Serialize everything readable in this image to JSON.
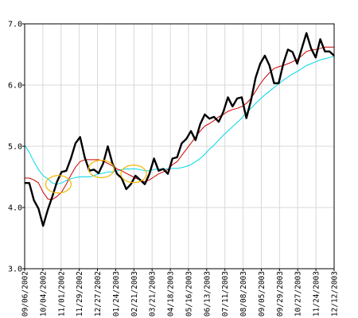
{
  "chart_data": {
    "type": "line",
    "title": "",
    "xlabel": "",
    "ylabel": "",
    "ylim": [
      3.0,
      7.0
    ],
    "y_ticks": [
      "3.0",
      "4.0",
      "5.0",
      "6.0",
      "7.0"
    ],
    "x_tick_labels": [
      "09/06/2002",
      "10/04/2002",
      "11/01/2002",
      "11/29/2002",
      "12/27/2002",
      "01/24/2003",
      "02/21/2003",
      "03/21/2003",
      "04/18/2003",
      "05/16/2003",
      "06/13/2003",
      "07/11/2003",
      "08/08/2003",
      "09/05/2003",
      "09/29/2003",
      "10/27/2003",
      "11/24/2003",
      "12/12/2003"
    ],
    "grid": true,
    "colors": {
      "price": "#000000",
      "ma_short": "#cc0000",
      "ma_long": "#00d8e8",
      "crossover_marker": "#f5b800"
    },
    "series": [
      {
        "key": "price",
        "values": [
          4.4,
          4.4,
          4.12,
          3.98,
          3.7,
          3.96,
          4.18,
          4.42,
          4.58,
          4.6,
          4.8,
          5.05,
          5.15,
          4.82,
          4.6,
          4.62,
          4.56,
          4.72,
          5.0,
          4.72,
          4.55,
          4.48,
          4.3,
          4.38,
          4.52,
          4.45,
          4.38,
          4.55,
          4.8,
          4.6,
          4.63,
          4.55,
          4.8,
          4.82,
          5.05,
          5.12,
          5.25,
          5.1,
          5.36,
          5.52,
          5.45,
          5.48,
          5.4,
          5.56,
          5.8,
          5.65,
          5.78,
          5.8,
          5.46,
          5.75,
          6.12,
          6.35,
          6.48,
          6.32,
          6.03,
          6.03,
          6.35,
          6.58,
          6.54,
          6.35,
          6.6,
          6.85,
          6.6,
          6.45,
          6.75,
          6.55,
          6.55,
          6.48
        ]
      },
      {
        "key": "ma_short",
        "values": [
          4.48,
          4.48,
          4.45,
          4.4,
          4.25,
          4.14,
          4.13,
          4.18,
          4.25,
          4.38,
          4.53,
          4.66,
          4.75,
          4.78,
          4.78,
          4.78,
          4.78,
          4.76,
          4.72,
          4.68,
          4.63,
          4.6,
          4.56,
          4.52,
          4.48,
          4.45,
          4.42,
          4.45,
          4.5,
          4.55,
          4.58,
          4.62,
          4.7,
          4.75,
          4.85,
          4.95,
          5.05,
          5.15,
          5.25,
          5.33,
          5.37,
          5.42,
          5.48,
          5.52,
          5.57,
          5.6,
          5.62,
          5.65,
          5.7,
          5.78,
          5.9,
          6.02,
          6.12,
          6.2,
          6.27,
          6.3,
          6.32,
          6.35,
          6.38,
          6.42,
          6.48,
          6.55,
          6.57,
          6.58,
          6.6,
          6.62,
          6.62,
          6.62
        ]
      },
      {
        "key": "ma_long",
        "values": [
          5.02,
          4.9,
          4.75,
          4.62,
          4.52,
          4.47,
          4.4,
          4.38,
          4.4,
          4.44,
          4.47,
          4.49,
          4.5,
          4.5,
          4.5,
          4.52,
          4.55,
          4.56,
          4.58,
          4.58,
          4.6,
          4.62,
          4.63,
          4.63,
          4.63,
          4.62,
          4.6,
          4.6,
          4.62,
          4.63,
          4.63,
          4.63,
          4.64,
          4.64,
          4.65,
          4.67,
          4.7,
          4.75,
          4.8,
          4.87,
          4.95,
          5.02,
          5.1,
          5.18,
          5.25,
          5.32,
          5.39,
          5.46,
          5.55,
          5.62,
          5.7,
          5.77,
          5.84,
          5.9,
          5.96,
          6.02,
          6.08,
          6.13,
          6.18,
          6.22,
          6.27,
          6.32,
          6.35,
          6.38,
          6.41,
          6.43,
          6.45,
          6.47
        ]
      }
    ],
    "crossover_markers": [
      {
        "index": 7.3,
        "value": 4.38
      },
      {
        "index": 16.6,
        "value": 4.63
      },
      {
        "index": 23.6,
        "value": 4.55
      }
    ]
  }
}
